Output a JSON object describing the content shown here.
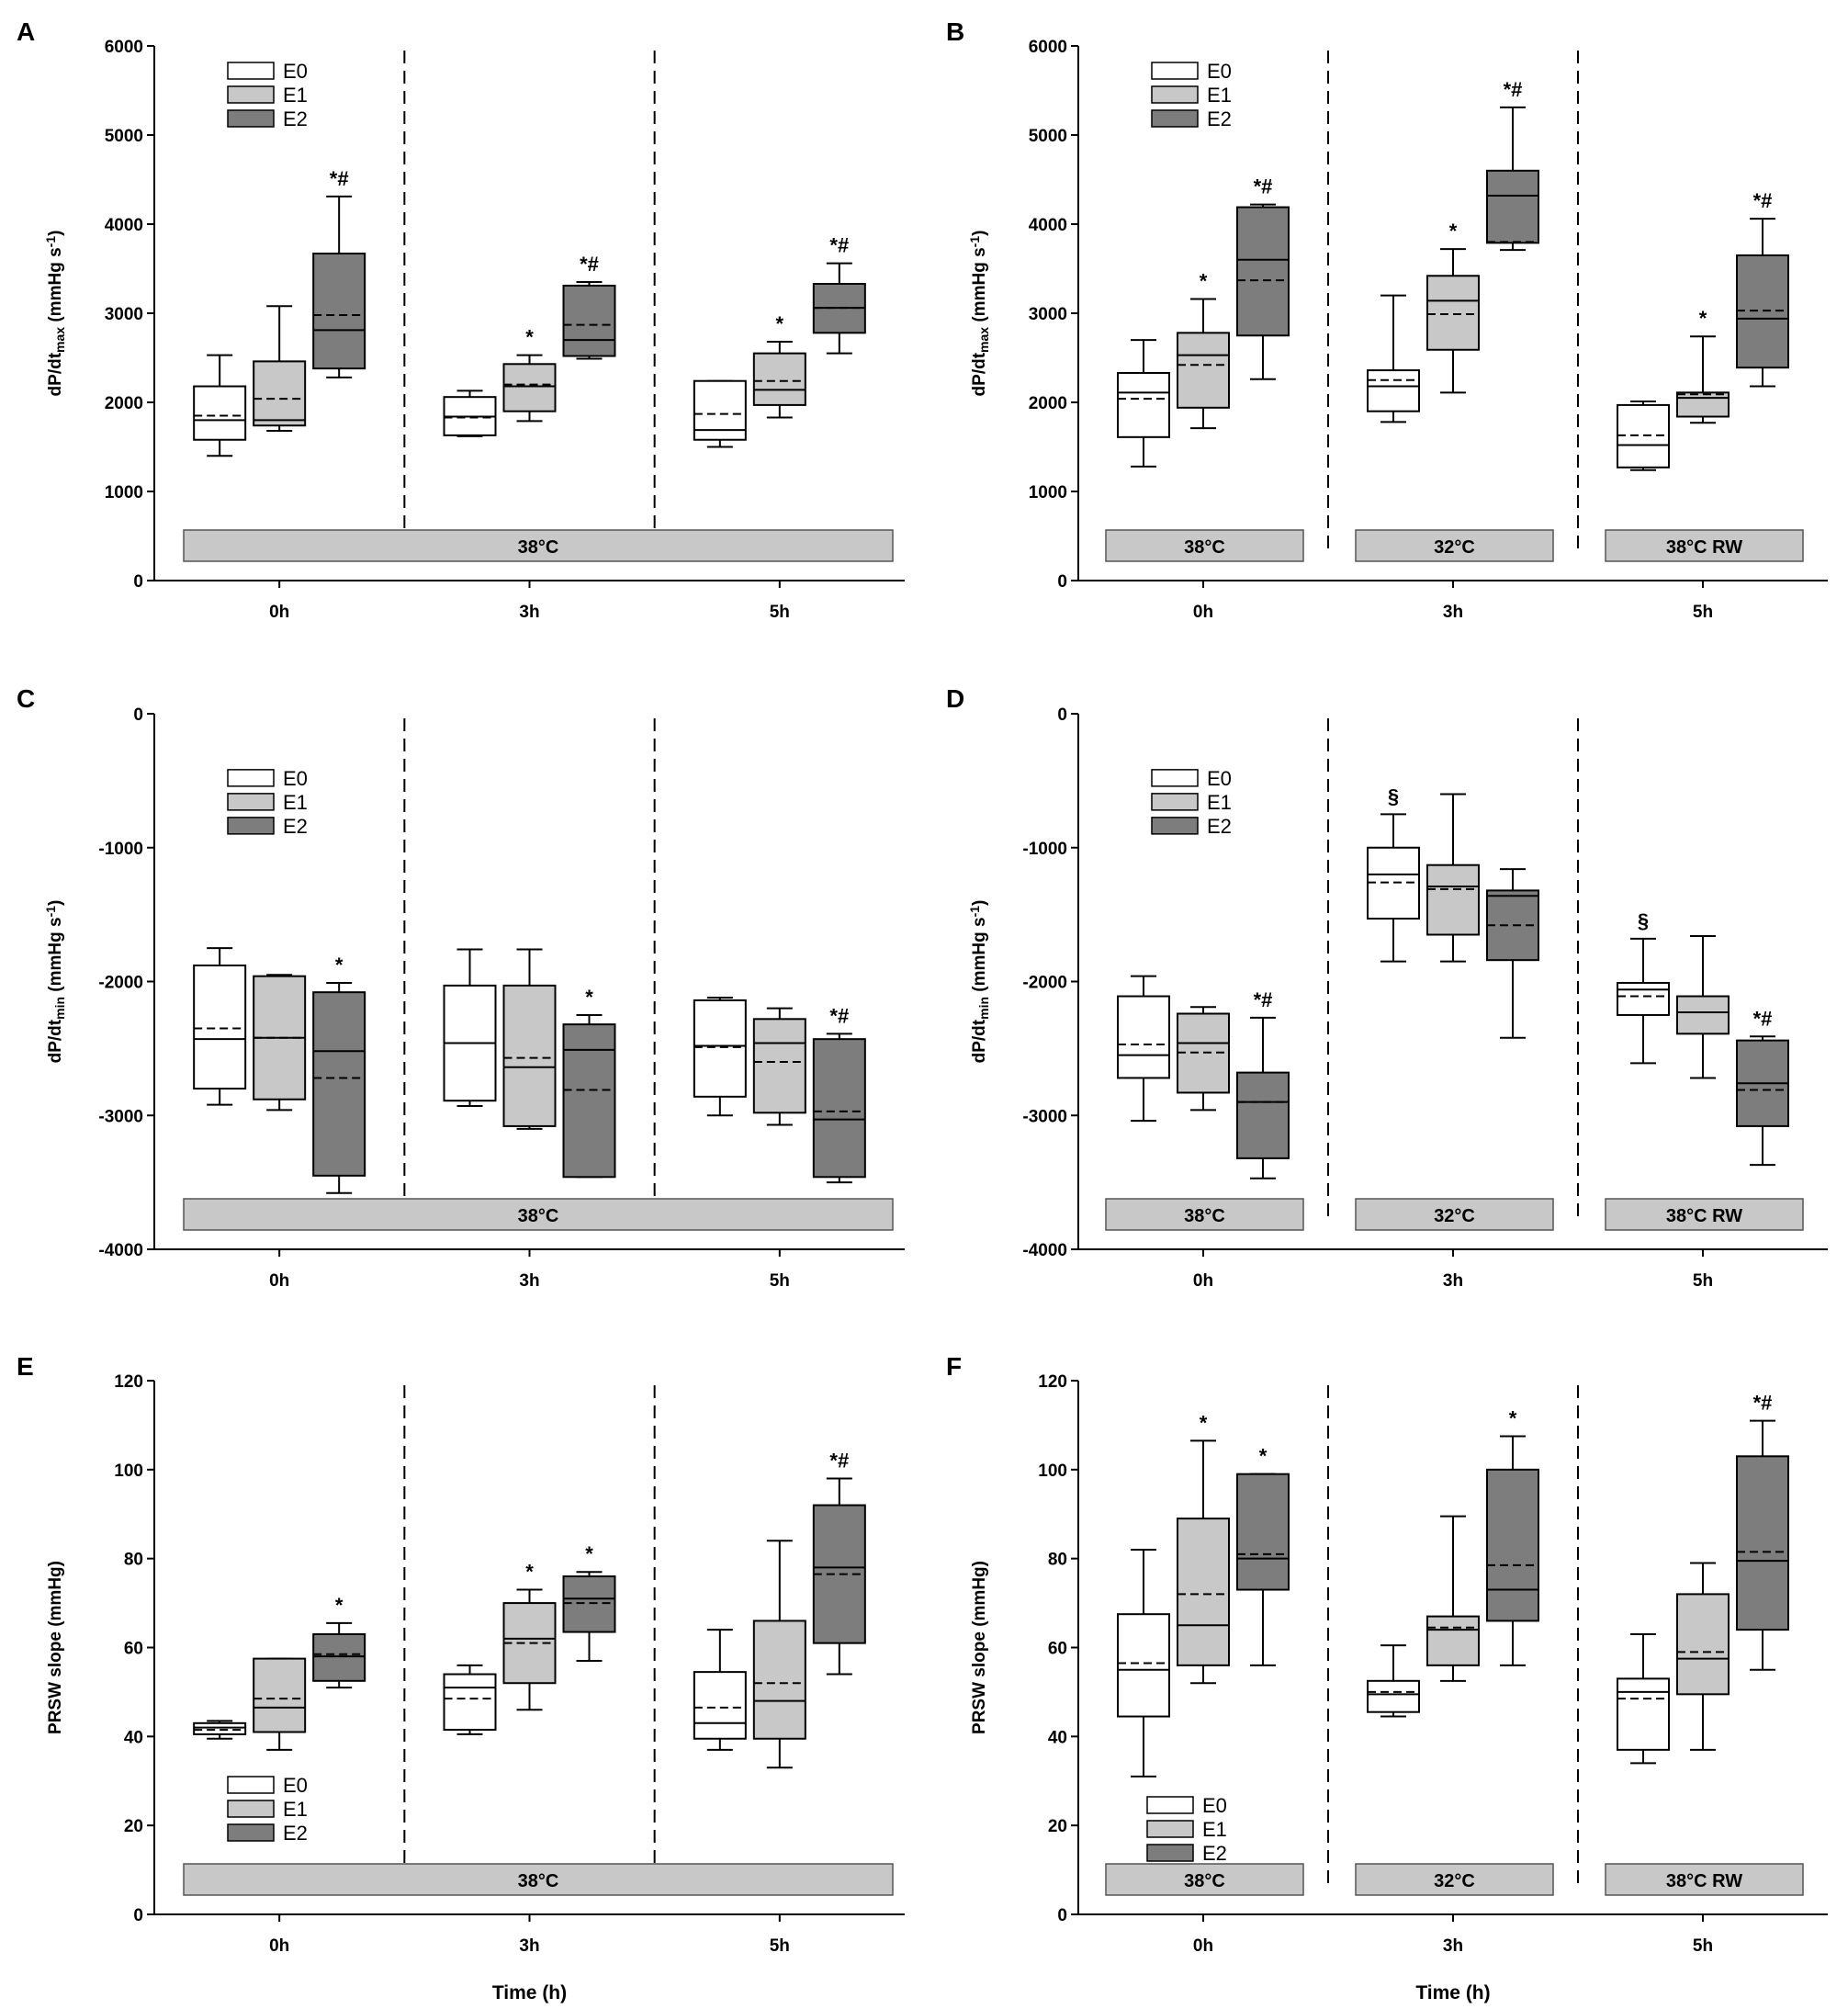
{
  "chart_data": [
    {
      "panel": "A",
      "type": "box",
      "ylabel_main": "dP/dt",
      "ylabel_sub": "max",
      "ylabel_unit": " (mmHg s",
      "ylabel_sup": "-1",
      "ylabel_close": ")",
      "ylim": [
        0,
        6000
      ],
      "yticks": [
        0,
        1000,
        2000,
        3000,
        4000,
        5000,
        6000
      ],
      "time_labels": [
        "0h",
        "3h",
        "5h"
      ],
      "xlabel": "",
      "conditions": [
        "38°C"
      ],
      "legend": [
        "E0",
        "E1",
        "E2"
      ],
      "legend_position": "top-left",
      "groups": [
        {
          "time": "0h",
          "E0": {
            "min": 1400,
            "q1": 1580,
            "median": 1800,
            "mean": 1850,
            "q3": 2180,
            "max": 2530,
            "sig": ""
          },
          "E1": {
            "min": 1680,
            "q1": 1740,
            "median": 1800,
            "mean": 2040,
            "q3": 2460,
            "max": 3080,
            "sig": ""
          },
          "E2": {
            "min": 2280,
            "q1": 2380,
            "median": 2810,
            "mean": 2980,
            "q3": 3670,
            "max": 4310,
            "sig": "*#"
          }
        },
        {
          "time": "3h",
          "E0": {
            "min": 1620,
            "q1": 1630,
            "median": 1840,
            "mean": 1830,
            "q3": 2060,
            "max": 2130,
            "sig": ""
          },
          "E1": {
            "min": 1790,
            "q1": 1900,
            "median": 2180,
            "mean": 2200,
            "q3": 2430,
            "max": 2530,
            "sig": "*"
          },
          "E2": {
            "min": 2490,
            "q1": 2520,
            "median": 2700,
            "mean": 2870,
            "q3": 3310,
            "max": 3350,
            "sig": "*#"
          }
        },
        {
          "time": "5h",
          "E0": {
            "min": 1500,
            "q1": 1580,
            "median": 1690,
            "mean": 1870,
            "q3": 2240,
            "max": 2240,
            "sig": ""
          },
          "E1": {
            "min": 1830,
            "q1": 1970,
            "median": 2140,
            "mean": 2240,
            "q3": 2550,
            "max": 2680,
            "sig": "*"
          },
          "E2": {
            "min": 2550,
            "q1": 2780,
            "median": 3060,
            "mean": 3060,
            "q3": 3330,
            "max": 3560,
            "sig": "*#"
          }
        }
      ]
    },
    {
      "panel": "B",
      "type": "box",
      "ylabel_main": "dP/dt",
      "ylabel_sub": "max",
      "ylabel_unit": " (mmHg s",
      "ylabel_sup": "-1",
      "ylabel_close": ")",
      "ylim": [
        0,
        6000
      ],
      "yticks": [
        0,
        1000,
        2000,
        3000,
        4000,
        5000,
        6000
      ],
      "time_labels": [
        "0h",
        "3h",
        "5h"
      ],
      "xlabel": "",
      "conditions": [
        "38°C",
        "32°C",
        "38°C RW"
      ],
      "legend": [
        "E0",
        "E1",
        "E2"
      ],
      "legend_position": "top-left",
      "groups": [
        {
          "time": "0h",
          "E0": {
            "min": 1280,
            "q1": 1610,
            "median": 2110,
            "mean": 2040,
            "q3": 2330,
            "max": 2700,
            "sig": ""
          },
          "E1": {
            "min": 1710,
            "q1": 1940,
            "median": 2530,
            "mean": 2420,
            "q3": 2780,
            "max": 3160,
            "sig": "*"
          },
          "E2": {
            "min": 2260,
            "q1": 2750,
            "median": 3600,
            "mean": 3370,
            "q3": 4190,
            "max": 4220,
            "sig": "*#"
          }
        },
        {
          "time": "3h",
          "E0": {
            "min": 1780,
            "q1": 1900,
            "median": 2180,
            "mean": 2250,
            "q3": 2360,
            "max": 3200,
            "sig": ""
          },
          "E1": {
            "min": 2110,
            "q1": 2590,
            "median": 3140,
            "mean": 2990,
            "q3": 3420,
            "max": 3720,
            "sig": "*"
          },
          "E2": {
            "min": 3710,
            "q1": 3790,
            "median": 4320,
            "mean": 3800,
            "q3": 4600,
            "max": 5310,
            "sig": "*#"
          }
        },
        {
          "time": "5h",
          "E0": {
            "min": 1240,
            "q1": 1270,
            "median": 1520,
            "mean": 1630,
            "q3": 1970,
            "max": 2010,
            "sig": ""
          },
          "E1": {
            "min": 1770,
            "q1": 1840,
            "median": 2050,
            "mean": 2090,
            "q3": 2110,
            "max": 2740,
            "sig": "*"
          },
          "E2": {
            "min": 2180,
            "q1": 2390,
            "median": 2940,
            "mean": 3030,
            "q3": 3650,
            "max": 4060,
            "sig": "*#"
          }
        }
      ]
    },
    {
      "panel": "C",
      "type": "box",
      "ylabel_main": "dP/dt",
      "ylabel_sub": "min",
      "ylabel_unit": " (mmHg s",
      "ylabel_sup": "-1",
      "ylabel_close": ")",
      "ylim": [
        -4000,
        0
      ],
      "yticks": [
        -4000,
        -3000,
        -2000,
        -1000,
        0
      ],
      "time_labels": [
        "0h",
        "3h",
        "5h"
      ],
      "xlabel": "",
      "conditions": [
        "38°C"
      ],
      "legend": [
        "E0",
        "E1",
        "E2"
      ],
      "legend_position": "upper-left",
      "groups": [
        {
          "time": "0h",
          "E0": {
            "min": -2920,
            "q1": -2800,
            "median": -2430,
            "mean": -2350,
            "q3": -1880,
            "max": -1750,
            "sig": ""
          },
          "E1": {
            "min": -2960,
            "q1": -2880,
            "median": -2420,
            "mean": -2420,
            "q3": -1960,
            "max": -1950,
            "sig": ""
          },
          "E2": {
            "min": -3580,
            "q1": -3450,
            "median": -2520,
            "mean": -2720,
            "q3": -2080,
            "max": -2010,
            "sig": "*"
          }
        },
        {
          "time": "3h",
          "E0": {
            "min": -2930,
            "q1": -2890,
            "median": -2460,
            "mean": -2460,
            "q3": -2030,
            "max": -1760,
            "sig": ""
          },
          "E1": {
            "min": -3100,
            "q1": -3080,
            "median": -2640,
            "mean": -2570,
            "q3": -2030,
            "max": -1760,
            "sig": ""
          },
          "E2": {
            "min": -3460,
            "q1": -3460,
            "median": -2510,
            "mean": -2810,
            "q3": -2320,
            "max": -2250,
            "sig": "*"
          }
        },
        {
          "time": "5h",
          "E0": {
            "min": -3000,
            "q1": -2860,
            "median": -2480,
            "mean": -2490,
            "q3": -2140,
            "max": -2120,
            "sig": ""
          },
          "E1": {
            "min": -3070,
            "q1": -2980,
            "median": -2460,
            "mean": -2600,
            "q3": -2280,
            "max": -2200,
            "sig": ""
          },
          "E2": {
            "min": -3500,
            "q1": -3460,
            "median": -3030,
            "mean": -2970,
            "q3": -2430,
            "max": -2390,
            "sig": "*#"
          }
        }
      ]
    },
    {
      "panel": "D",
      "type": "box",
      "ylabel_main": "dP/dt",
      "ylabel_sub": "min",
      "ylabel_unit": " (mmHg s",
      "ylabel_sup": "-1",
      "ylabel_close": ")",
      "ylim": [
        -4000,
        0
      ],
      "yticks": [
        -4000,
        -3000,
        -2000,
        -1000,
        0
      ],
      "time_labels": [
        "0h",
        "3h",
        "5h"
      ],
      "xlabel": "",
      "conditions": [
        "38°C",
        "32°C",
        "38°C RW"
      ],
      "legend": [
        "E0",
        "E1",
        "E2"
      ],
      "legend_position": "upper-left",
      "groups": [
        {
          "time": "0h",
          "E0": {
            "min": -3040,
            "q1": -2720,
            "median": -2550,
            "mean": -2470,
            "q3": -2110,
            "max": -1960,
            "sig": ""
          },
          "E1": {
            "min": -2960,
            "q1": -2830,
            "median": -2460,
            "mean": -2530,
            "q3": -2240,
            "max": -2190,
            "sig": ""
          },
          "E2": {
            "min": -3470,
            "q1": -3320,
            "median": -2900,
            "mean": -2900,
            "q3": -2680,
            "max": -2270,
            "sig": "*#"
          }
        },
        {
          "time": "3h",
          "E0": {
            "min": -1850,
            "q1": -1530,
            "median": -1200,
            "mean": -1260,
            "q3": -1000,
            "max": -750,
            "sig": "§"
          },
          "E1": {
            "min": -1850,
            "q1": -1650,
            "median": -1290,
            "mean": -1310,
            "q3": -1130,
            "max": -600,
            "sig": ""
          },
          "E2": {
            "min": -2420,
            "q1": -1840,
            "median": -1360,
            "mean": -1580,
            "q3": -1320,
            "max": -1160,
            "sig": ""
          }
        },
        {
          "time": "5h",
          "E0": {
            "min": -2610,
            "q1": -2250,
            "median": -2060,
            "mean": -2110,
            "q3": -2010,
            "max": -1680,
            "sig": "§"
          },
          "E1": {
            "min": -2720,
            "q1": -2390,
            "median": -2230,
            "mean": -2230,
            "q3": -2110,
            "max": -1660,
            "sig": ""
          },
          "E2": {
            "min": -3370,
            "q1": -3080,
            "median": -2760,
            "mean": -2810,
            "q3": -2440,
            "max": -2410,
            "sig": "*#"
          }
        }
      ]
    },
    {
      "panel": "E",
      "type": "box",
      "ylabel_main": "PRSW slope (mmHg)",
      "ylabel_sub": "",
      "ylabel_unit": "",
      "ylabel_sup": "",
      "ylabel_close": "",
      "ylim": [
        0,
        120
      ],
      "yticks": [
        0,
        20,
        40,
        60,
        80,
        100,
        120
      ],
      "time_labels": [
        "0h",
        "3h",
        "5h"
      ],
      "xlabel": "Time (h)",
      "conditions": [
        "38°C"
      ],
      "legend": [
        "E0",
        "E1",
        "E2"
      ],
      "legend_position": "lower-left",
      "groups": [
        {
          "time": "0h",
          "E0": {
            "min": 39.5,
            "q1": 40.5,
            "median": 42,
            "mean": 41.5,
            "q3": 43,
            "max": 43.5,
            "sig": ""
          },
          "E1": {
            "min": 37,
            "q1": 41,
            "median": 46.5,
            "mean": 48.5,
            "q3": 57.5,
            "max": 57.5,
            "sig": ""
          },
          "E2": {
            "min": 51,
            "q1": 52.5,
            "median": 58,
            "mean": 58.5,
            "q3": 63,
            "max": 65.5,
            "sig": "*"
          }
        },
        {
          "time": "3h",
          "E0": {
            "min": 40.5,
            "q1": 41.5,
            "median": 51,
            "mean": 48.5,
            "q3": 54,
            "max": 56,
            "sig": ""
          },
          "E1": {
            "min": 46,
            "q1": 52,
            "median": 62,
            "mean": 61,
            "q3": 70,
            "max": 73,
            "sig": "*"
          },
          "E2": {
            "min": 57,
            "q1": 63.5,
            "median": 71,
            "mean": 70,
            "q3": 76,
            "max": 77,
            "sig": "*"
          }
        },
        {
          "time": "5h",
          "E0": {
            "min": 37,
            "q1": 39.5,
            "median": 43,
            "mean": 46.5,
            "q3": 54.5,
            "max": 64,
            "sig": ""
          },
          "E1": {
            "min": 33,
            "q1": 39.5,
            "median": 48,
            "mean": 52,
            "q3": 66,
            "max": 84,
            "sig": ""
          },
          "E2": {
            "min": 54,
            "q1": 61,
            "median": 78,
            "mean": 76.5,
            "q3": 92,
            "max": 98,
            "sig": "*#"
          }
        }
      ]
    },
    {
      "panel": "F",
      "type": "box",
      "ylabel_main": "PRSW slope (mmHg)",
      "ylabel_sub": "",
      "ylabel_unit": "",
      "ylabel_sup": "",
      "ylabel_close": "",
      "ylim": [
        0,
        120
      ],
      "yticks": [
        0,
        20,
        40,
        60,
        80,
        100,
        120
      ],
      "time_labels": [
        "0h",
        "3h",
        "5h"
      ],
      "xlabel": "Time (h)",
      "conditions": [
        "38°C",
        "32°C",
        "38°C RW"
      ],
      "legend": [
        "E0",
        "E1",
        "E2"
      ],
      "legend_position": "lower-left",
      "groups": [
        {
          "time": "0h",
          "E0": {
            "min": 31,
            "q1": 44.5,
            "median": 55,
            "mean": 56.5,
            "q3": 67.5,
            "max": 82,
            "sig": ""
          },
          "E1": {
            "min": 52,
            "q1": 56,
            "median": 65,
            "mean": 72,
            "q3": 89,
            "max": 106.5,
            "sig": "*"
          },
          "E2": {
            "min": 56,
            "q1": 73,
            "median": 80,
            "mean": 81,
            "q3": 99,
            "max": 99,
            "sig": "*"
          }
        },
        {
          "time": "3h",
          "E0": {
            "min": 44.5,
            "q1": 45.5,
            "median": 49.5,
            "mean": 50,
            "q3": 52.5,
            "max": 60.5,
            "sig": ""
          },
          "E1": {
            "min": 52.5,
            "q1": 56,
            "median": 64,
            "mean": 64.5,
            "q3": 67,
            "max": 89.5,
            "sig": ""
          },
          "E2": {
            "min": 56,
            "q1": 66,
            "median": 73,
            "mean": 78.5,
            "q3": 100,
            "max": 107.5,
            "sig": "*"
          }
        },
        {
          "time": "5h",
          "E0": {
            "min": 34,
            "q1": 37,
            "median": 50,
            "mean": 48.5,
            "q3": 53,
            "max": 63,
            "sig": ""
          },
          "E1": {
            "min": 37,
            "q1": 49.5,
            "median": 57.5,
            "mean": 59,
            "q3": 72,
            "max": 79,
            "sig": ""
          },
          "E2": {
            "min": 55,
            "q1": 64,
            "median": 79.5,
            "mean": 81.5,
            "q3": 103,
            "max": 111,
            "sig": "*#"
          }
        }
      ]
    }
  ]
}
